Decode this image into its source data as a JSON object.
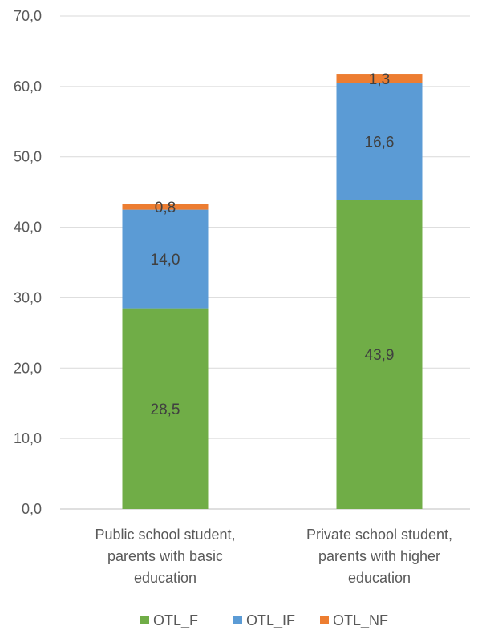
{
  "chart_data": {
    "type": "bar",
    "stacked": true,
    "categories": [
      [
        "Public school student,",
        "parents with basic",
        "education"
      ],
      [
        "Private school student,",
        "parents with higher",
        "education"
      ]
    ],
    "series": [
      {
        "name": "OTL_F",
        "color": "#70AD47",
        "values": [
          28.5,
          43.9
        ],
        "labels": [
          "28,5",
          "43,9"
        ]
      },
      {
        "name": "OTL_IF",
        "color": "#5B9BD5",
        "values": [
          14.0,
          16.6
        ],
        "labels": [
          "14,0",
          "16,6"
        ]
      },
      {
        "name": "OTL_NF",
        "color": "#ED7D31",
        "values": [
          0.8,
          1.3
        ],
        "labels": [
          "0,8",
          "1,3"
        ]
      }
    ],
    "ylim": [
      0,
      70
    ],
    "yticks": [
      "0,0",
      "10,0",
      "20,0",
      "30,0",
      "40,0",
      "50,0",
      "60,0",
      "70,0"
    ],
    "grid": true,
    "legend": "bottom",
    "title": "",
    "xlabel": "",
    "ylabel": ""
  }
}
